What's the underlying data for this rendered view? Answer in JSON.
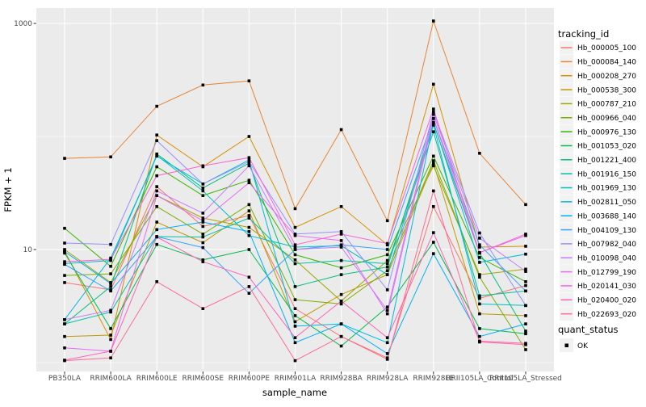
{
  "colors": {
    "panel_bg": "#EBEBEB",
    "grid": "#FFFFFF",
    "axis_text": "#4D4D4D",
    "title_text": "#000000",
    "legend_key_bg": "#F2F2F2",
    "point": "#000000",
    "tick_mark": "#333333"
  },
  "chart_data": {
    "type": "line",
    "title": "",
    "xlabel": "sample_name",
    "ylabel": "FPKM + 1",
    "y_scale": "log10",
    "ylim": [
      1,
      1300
    ],
    "y_tick_values": [
      1000,
      10
    ],
    "y_tick_labels": [
      "1000",
      "10"
    ],
    "y_gridlines_major": [
      10,
      1000
    ],
    "y_gridlines_minor": [
      1,
      100
    ],
    "grid": "on",
    "point_marker": {
      "shape": "square",
      "color": "#000000"
    },
    "legend": {
      "title": "tracking_id",
      "position": "right"
    },
    "quant_legend": {
      "title": "quant_status",
      "items": [
        {
          "label": "OK",
          "marker": "black-square"
        }
      ]
    },
    "categories": [
      "PB350LA",
      "RRIM600LA",
      "RRIM600LE",
      "RRIM600SE",
      "RRIM600PE",
      "RRIM901LA",
      "RRIM928BA",
      "RRIM928LA",
      "RRIM928LE",
      "RRII105LA_Control",
      "RRII105LA_Stressed"
    ],
    "series": [
      {
        "name": "Hb_000005_100",
        "color": "#F8766D",
        "values": [
          5.1,
          4.4,
          36,
          16,
          20,
          3.0,
          1.7,
          1.1,
          24,
          3.7,
          4.8
        ]
      },
      {
        "name": "Hb_000084_140",
        "color": "#EA8331",
        "values": [
          64,
          66,
          185,
          285,
          310,
          23,
          115,
          18,
          1050,
          71,
          25
        ]
      },
      {
        "name": "Hb_000208_270",
        "color": "#D89000",
        "values": [
          9.7,
          1.6,
          103,
          54,
          100,
          15.7,
          24,
          11,
          290,
          10.5,
          10.7
        ]
      },
      {
        "name": "Hb_000538_300",
        "color": "#C09B00",
        "values": [
          1.7,
          1.75,
          17.5,
          11.5,
          22,
          2.3,
          4.0,
          6.0,
          58,
          2.7,
          2.6
        ]
      },
      {
        "name": "Hb_000787_210",
        "color": "#A3A500",
        "values": [
          10,
          5.1,
          30,
          19,
          15.7,
          8.1,
          3.5,
          8.0,
          55,
          6.0,
          6.7
        ]
      },
      {
        "name": "Hb_000966_040",
        "color": "#7CAE00",
        "values": [
          5.9,
          6.1,
          24,
          13.7,
          25,
          3.6,
          3.3,
          6.5,
          61,
          5.7,
          1.3
        ]
      },
      {
        "name": "Hb_000976_130",
        "color": "#39B600",
        "values": [
          15.4,
          7.1,
          54,
          30,
          41,
          9.0,
          6.9,
          9.0,
          67,
          8.5,
          5.2
        ]
      },
      {
        "name": "Hb_001053_020",
        "color": "#00BB4E",
        "values": [
          9.3,
          2.0,
          11.1,
          8.1,
          10,
          2.6,
          1.4,
          3.1,
          11.6,
          2.0,
          1.8
        ]
      },
      {
        "name": "Hb_001221_400",
        "color": "#00BF7D",
        "values": [
          2.2,
          4.7,
          70,
          35,
          58,
          4.7,
          6.0,
          7.0,
          130,
          9.3,
          1.9
        ]
      },
      {
        "name": "Hb_001916_150",
        "color": "#00C1A3",
        "values": [
          2.2,
          2.8,
          13,
          12.9,
          19,
          7.5,
          8.0,
          7.5,
          110,
          3.9,
          4.3
        ]
      },
      {
        "name": "Hb_001969_130",
        "color": "#00BFC4",
        "values": [
          7.5,
          8.0,
          68,
          33,
          13.3,
          10.5,
          10.8,
          6.0,
          126,
          3.3,
          3.2
        ]
      },
      {
        "name": "Hb_002811_050",
        "color": "#00BAE0",
        "values": [
          2.4,
          8.4,
          67,
          38,
          62,
          2.1,
          2.2,
          1.5,
          133,
          7.7,
          9.1
        ]
      },
      {
        "name": "Hb_003688_140",
        "color": "#00B0F6",
        "values": [
          9.6,
          5.0,
          15,
          17.5,
          14.4,
          1.5,
          2.2,
          1.2,
          9.2,
          1.7,
          2.2
        ]
      },
      {
        "name": "Hb_004109_130",
        "color": "#35A2FF",
        "values": [
          7.4,
          4.3,
          13,
          10.4,
          4.1,
          10.0,
          11.0,
          10.0,
          144,
          11.0,
          4.3
        ]
      },
      {
        "name": "Hb_007982_040",
        "color": "#9590FF",
        "values": [
          11.4,
          11.1,
          92,
          38,
          60,
          13.7,
          14.4,
          4.4,
          165,
          14,
          3.2
        ]
      },
      {
        "name": "Hb_010098_040",
        "color": "#C77CFF",
        "values": [
          2.4,
          2.9,
          33,
          21,
          55,
          10,
          10.5,
          2.9,
          157,
          12.6,
          6.4
        ]
      },
      {
        "name": "Hb_012799_190",
        "color": "#E76BF3",
        "values": [
          1.35,
          1.26,
          30,
          18,
          39,
          13.3,
          12,
          2.7,
          144,
          9.4,
          13.3
        ]
      },
      {
        "name": "Hb_020141_030",
        "color": "#FA62DB",
        "values": [
          7.8,
          8.2,
          45,
          55,
          65,
          11,
          13.7,
          11.3,
          175,
          9.4,
          13.7
        ]
      },
      {
        "name": "Hb_020400_020",
        "color": "#FF62BC",
        "values": [
          1.05,
          1.26,
          12.9,
          7.8,
          5.7,
          1.66,
          3.5,
          1.66,
          14.1,
          1.55,
          1.48
        ]
      },
      {
        "name": "Hb_022693_020",
        "color": "#FF6A98",
        "values": [
          1.04,
          1.1,
          5.2,
          3.0,
          4.7,
          1.04,
          1.7,
          1.07,
          33,
          1.52,
          1.44
        ]
      }
    ]
  }
}
